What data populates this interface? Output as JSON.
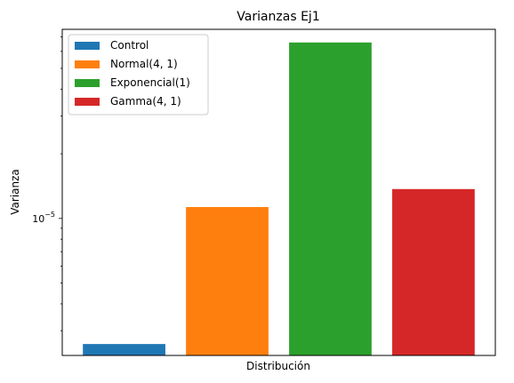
{
  "chart_data": {
    "type": "bar",
    "title": "Varianzas Ej1",
    "xlabel": "Distribución",
    "ylabel": "Varianza",
    "yscale": "log",
    "ylim": [
      2.3e-06,
      7.6e-05
    ],
    "major_ticks": [
      {
        "value": 1e-05,
        "base": "10",
        "exponent": "−5"
      }
    ],
    "minor_ticks": [
      3e-06,
      4e-06,
      5e-06,
      6e-06,
      7e-06,
      8e-06,
      9e-06,
      2e-05,
      3e-05,
      4e-05,
      5e-05,
      6e-05,
      7e-05
    ],
    "xticks": [],
    "legend": {
      "location": "upper-left"
    },
    "grid": false,
    "series": [
      {
        "name": "Control",
        "value": 2.6e-06,
        "color": "#1f77b4"
      },
      {
        "name": "Normal(4, 1)",
        "value": 1.13e-05,
        "color": "#ff7f0e"
      },
      {
        "name": "Exponencial(1)",
        "value": 6.6e-05,
        "color": "#2ca02c"
      },
      {
        "name": "Gamma(4, 1)",
        "value": 1.37e-05,
        "color": "#d62728"
      }
    ]
  }
}
